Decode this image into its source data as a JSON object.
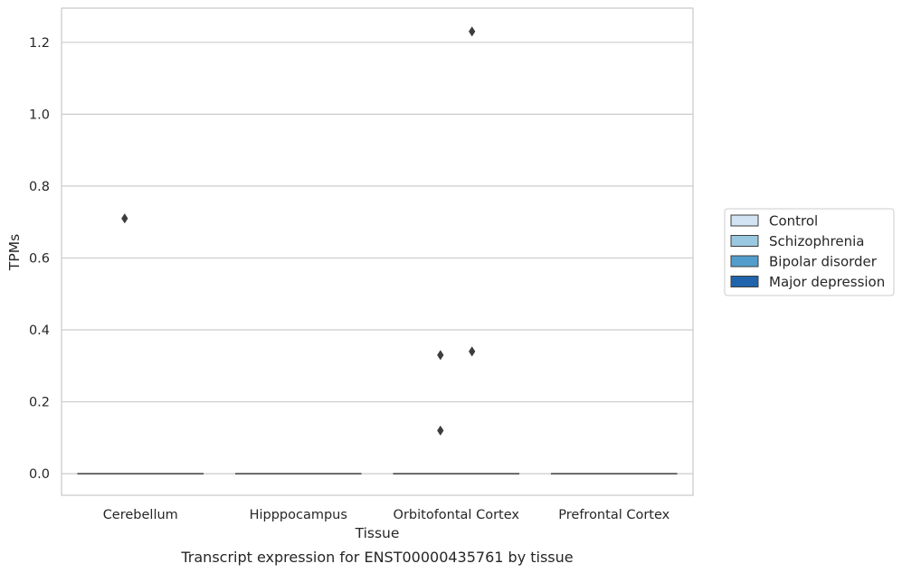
{
  "chart_data": {
    "type": "box",
    "title": "",
    "caption": "Transcript expression for ENST00000435761 by tissue",
    "xlabel": "Tissue",
    "ylabel": "TPMs",
    "ylim": [
      -0.06,
      1.295
    ],
    "yticks": [
      0.0,
      0.2,
      0.4,
      0.6,
      0.8,
      1.0,
      1.2
    ],
    "ytick_labels": [
      "0.0",
      "0.2",
      "0.4",
      "0.6",
      "0.8",
      "1.0",
      "1.2"
    ],
    "categories": [
      "Cerebellum",
      "Hipppocampus",
      "Orbitofontal Cortex",
      "Prefrontal Cortex"
    ],
    "grid": "horizontal",
    "legend_position": "right",
    "series": [
      {
        "name": "Control",
        "color": "#d2e3f3"
      },
      {
        "name": "Schizophrenia",
        "color": "#9ac8e0"
      },
      {
        "name": "Bipolar disorder",
        "color": "#529dcc"
      },
      {
        "name": "Major depression",
        "color": "#2064ab"
      }
    ],
    "boxes": [
      {
        "category": "Cerebellum",
        "median": 0.0,
        "q1": 0.0,
        "q3": 0.0,
        "whisker_low": 0.0,
        "whisker_high": 0.0
      },
      {
        "category": "Hipppocampus",
        "median": 0.0,
        "q1": 0.0,
        "q3": 0.0,
        "whisker_low": 0.0,
        "whisker_high": 0.0
      },
      {
        "category": "Orbitofontal Cortex",
        "median": 0.0,
        "q1": 0.0,
        "q3": 0.0,
        "whisker_low": 0.0,
        "whisker_high": 0.0
      },
      {
        "category": "Prefrontal Cortex",
        "median": 0.0,
        "q1": 0.0,
        "q3": 0.0,
        "whisker_low": 0.0,
        "whisker_high": 0.0
      }
    ],
    "outliers": [
      {
        "category": "Cerebellum",
        "series": "Schizophrenia",
        "value": 0.71
      },
      {
        "category": "Orbitofontal Cortex",
        "series": "Schizophrenia",
        "value": 0.33
      },
      {
        "category": "Orbitofontal Cortex",
        "series": "Schizophrenia",
        "value": 0.12
      },
      {
        "category": "Orbitofontal Cortex",
        "series": "Bipolar disorder",
        "value": 1.23
      },
      {
        "category": "Orbitofontal Cortex",
        "series": "Bipolar disorder",
        "value": 0.34
      }
    ]
  }
}
